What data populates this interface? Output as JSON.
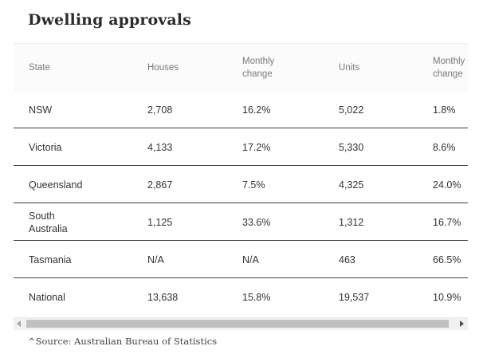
{
  "title": "Dwelling approvals",
  "table": {
    "headers": [
      "State",
      "Houses",
      "Monthly\nchange",
      "Units",
      "Monthly\nchange"
    ],
    "rows": [
      [
        "NSW",
        "2,708",
        "16.2%",
        "5,022",
        "1.8%"
      ],
      [
        "Victoria",
        "4,133",
        "17.2%",
        "5,330",
        "8.6%"
      ],
      [
        "Queensland",
        "2,867",
        "7.5%",
        "4,325",
        "24.0%"
      ],
      [
        "South\nAustralia",
        "1,125",
        "33.6%",
        "1,312",
        "16.7%"
      ],
      [
        "Tasmania",
        "N/A",
        "N/A",
        "463",
        "66.5%"
      ],
      [
        "National",
        "13,638",
        "15.8%",
        "19,537",
        "10.9%"
      ]
    ]
  },
  "source": "^Source: Australian Bureau of Statistics"
}
